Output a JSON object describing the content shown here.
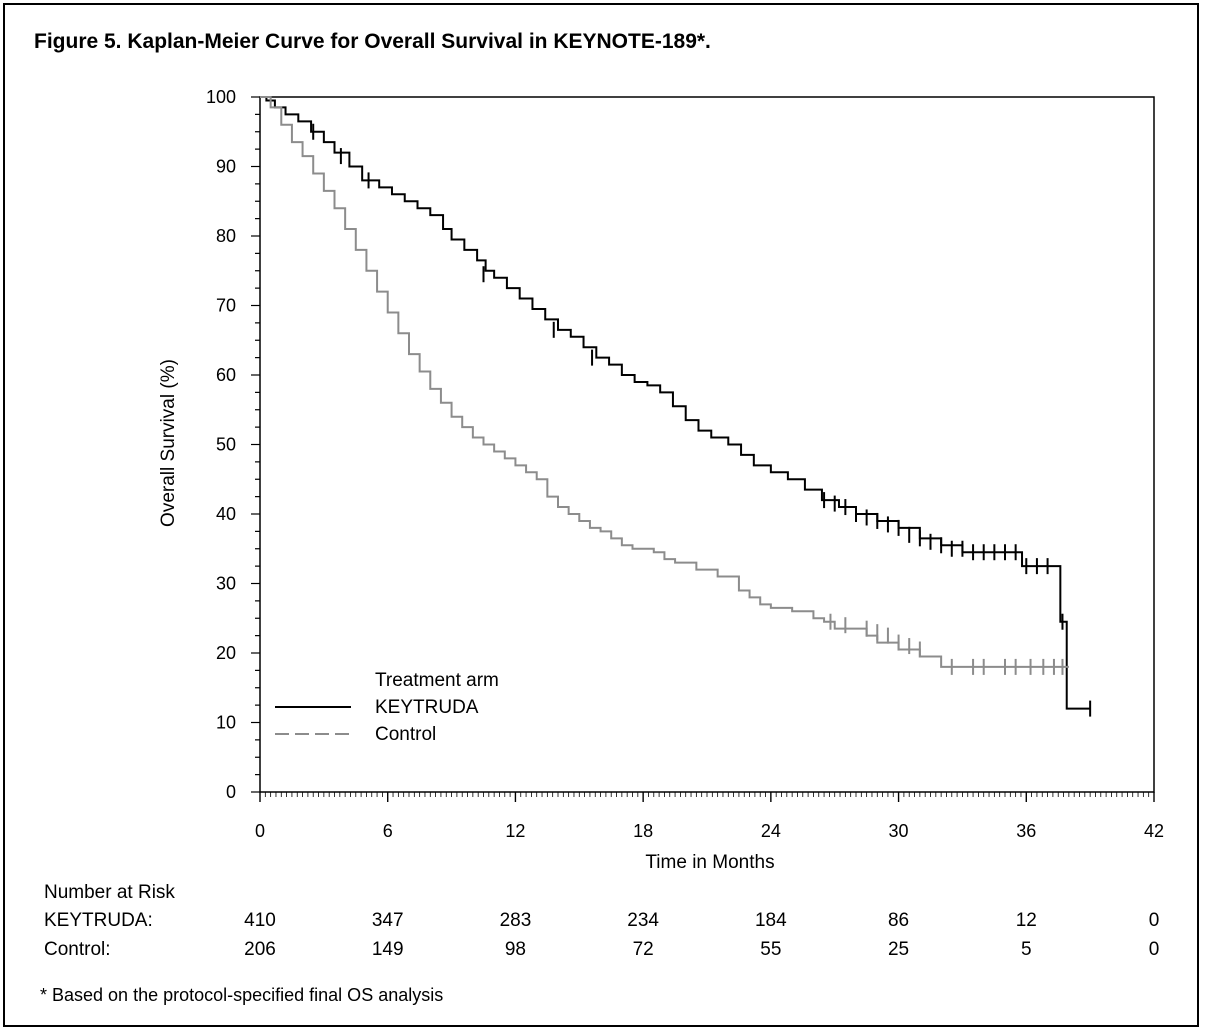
{
  "title": "Figure 5. Kaplan-Meier Curve for Overall Survival in KEYNOTE-189*.",
  "footnote": "*  Based on the protocol-specified final OS analysis",
  "chart_data": {
    "type": "line",
    "subtype": "kaplan-meier step",
    "xlabel": "Time in Months",
    "ylabel": "Overall Survival (%)",
    "xlim": [
      0,
      42
    ],
    "ylim": [
      0,
      100
    ],
    "xticks": [
      0,
      6,
      12,
      18,
      24,
      30,
      36,
      42
    ],
    "yticks": [
      0,
      10,
      20,
      30,
      40,
      50,
      60,
      70,
      80,
      90,
      100
    ],
    "grid": false,
    "legend": {
      "title": "Treatment arm",
      "placement": "bottom-left",
      "entries": [
        "KEYTRUDA",
        "Control"
      ]
    },
    "series": [
      {
        "name": "KEYTRUDA",
        "color": "#000000",
        "dash": "solid",
        "points": [
          [
            0,
            100
          ],
          [
            0.3,
            99.5
          ],
          [
            0.7,
            98.5
          ],
          [
            1.2,
            97.5
          ],
          [
            1.8,
            96.5
          ],
          [
            2.4,
            95
          ],
          [
            3,
            93.5
          ],
          [
            3.5,
            92
          ],
          [
            4.2,
            90
          ],
          [
            4.8,
            88
          ],
          [
            5.6,
            87
          ],
          [
            6.2,
            86
          ],
          [
            6.8,
            85
          ],
          [
            7.4,
            84
          ],
          [
            8,
            83
          ],
          [
            8.6,
            81
          ],
          [
            9,
            79.5
          ],
          [
            9.6,
            78
          ],
          [
            10.2,
            76.5
          ],
          [
            10.6,
            75
          ],
          [
            11,
            74
          ],
          [
            11.6,
            72.5
          ],
          [
            12.2,
            71
          ],
          [
            12.8,
            69.5
          ],
          [
            13.4,
            68
          ],
          [
            14,
            66.5
          ],
          [
            14.6,
            65.5
          ],
          [
            15.2,
            64
          ],
          [
            15.8,
            62.5
          ],
          [
            16.4,
            61.5
          ],
          [
            17,
            60
          ],
          [
            17.6,
            59
          ],
          [
            18.2,
            58.5
          ],
          [
            18.8,
            57.5
          ],
          [
            19.4,
            55.5
          ],
          [
            20,
            53.5
          ],
          [
            20.6,
            52
          ],
          [
            21.2,
            51
          ],
          [
            22,
            50
          ],
          [
            22.6,
            48.5
          ],
          [
            23.2,
            47
          ],
          [
            24,
            46
          ],
          [
            24.8,
            45
          ],
          [
            25.6,
            43.5
          ],
          [
            26.4,
            42
          ],
          [
            27.2,
            41
          ],
          [
            28,
            40
          ],
          [
            29,
            39
          ],
          [
            30,
            38
          ],
          [
            31,
            36.5
          ],
          [
            32,
            35.5
          ],
          [
            33,
            34.5
          ],
          [
            34,
            34.5
          ],
          [
            35,
            34.5
          ],
          [
            35.8,
            32.5
          ],
          [
            37.4,
            32.5
          ],
          [
            37.6,
            24.5
          ],
          [
            37.9,
            24
          ],
          [
            37.9,
            12
          ],
          [
            39,
            12
          ]
        ],
        "censored": [
          [
            2.5,
            95
          ],
          [
            3.8,
            91.5
          ],
          [
            5.1,
            88
          ],
          [
            10.5,
            74.5
          ],
          [
            13.8,
            66.5
          ],
          [
            15.6,
            62.5
          ],
          [
            26.5,
            42
          ],
          [
            27,
            41.5
          ],
          [
            27.5,
            41
          ],
          [
            28,
            40
          ],
          [
            28.5,
            39.5
          ],
          [
            29,
            39
          ],
          [
            29.5,
            38.5
          ],
          [
            30,
            38
          ],
          [
            30.5,
            37
          ],
          [
            31,
            36.5
          ],
          [
            31.5,
            36
          ],
          [
            32,
            35.5
          ],
          [
            32.5,
            35
          ],
          [
            33,
            35
          ],
          [
            33.5,
            34.5
          ],
          [
            34,
            34.5
          ],
          [
            34.5,
            34.5
          ],
          [
            35,
            34.5
          ],
          [
            35.5,
            34.5
          ],
          [
            36,
            32.5
          ],
          [
            36.5,
            32.5
          ],
          [
            37,
            32.5
          ],
          [
            37.7,
            24.5
          ],
          [
            39,
            12
          ]
        ]
      },
      {
        "name": "Control",
        "color": "#8c8c8c",
        "dash": "dashed",
        "points": [
          [
            0,
            100
          ],
          [
            0.5,
            98.5
          ],
          [
            1,
            96
          ],
          [
            1.5,
            93.5
          ],
          [
            2,
            91.5
          ],
          [
            2.5,
            89
          ],
          [
            3,
            86.5
          ],
          [
            3.5,
            84
          ],
          [
            4,
            81
          ],
          [
            4.5,
            78
          ],
          [
            5,
            75
          ],
          [
            5.5,
            72
          ],
          [
            6,
            69
          ],
          [
            6.5,
            66
          ],
          [
            7,
            63
          ],
          [
            7.5,
            60.5
          ],
          [
            8,
            58
          ],
          [
            8.5,
            56
          ],
          [
            9,
            54
          ],
          [
            9.5,
            52.5
          ],
          [
            10,
            51
          ],
          [
            10.5,
            50
          ],
          [
            11,
            49
          ],
          [
            11.5,
            48
          ],
          [
            12,
            47
          ],
          [
            12.5,
            46
          ],
          [
            13,
            45
          ],
          [
            13.5,
            42.5
          ],
          [
            14,
            41
          ],
          [
            14.5,
            40
          ],
          [
            15,
            39
          ],
          [
            15.5,
            38
          ],
          [
            16,
            37.5
          ],
          [
            16.5,
            36.5
          ],
          [
            17,
            35.5
          ],
          [
            17.5,
            35
          ],
          [
            18,
            35
          ],
          [
            18.5,
            34.5
          ],
          [
            19,
            33.5
          ],
          [
            19.5,
            33
          ],
          [
            20.5,
            32
          ],
          [
            21.5,
            31
          ],
          [
            22.5,
            29
          ],
          [
            23,
            28
          ],
          [
            23.5,
            27
          ],
          [
            24,
            26.5
          ],
          [
            25,
            26
          ],
          [
            26,
            25
          ],
          [
            26.5,
            24.5
          ],
          [
            27,
            23.5
          ],
          [
            28,
            23.5
          ],
          [
            28.5,
            22.5
          ],
          [
            29,
            21.5
          ],
          [
            30,
            20.5
          ],
          [
            31,
            19.5
          ],
          [
            32,
            18
          ],
          [
            38,
            18
          ]
        ],
        "censored": [
          [
            26.8,
            24.5
          ],
          [
            27.5,
            24
          ],
          [
            28.5,
            23.5
          ],
          [
            29,
            23
          ],
          [
            29.5,
            22.5
          ],
          [
            30,
            21.5
          ],
          [
            30.5,
            21
          ],
          [
            31,
            20.5
          ],
          [
            32.5,
            18
          ],
          [
            33.5,
            18
          ],
          [
            34,
            18
          ],
          [
            35,
            18
          ],
          [
            35.5,
            18
          ],
          [
            36.2,
            18
          ],
          [
            36.8,
            18
          ],
          [
            37.3,
            18
          ],
          [
            37.7,
            18
          ]
        ]
      }
    ],
    "number_at_risk": {
      "header": "Number at Risk",
      "times": [
        0,
        6,
        12,
        18,
        24,
        30,
        36,
        42
      ],
      "rows": [
        {
          "label": "KEYTRUDA:",
          "values": [
            "410",
            "347",
            "283",
            "234",
            "184",
            "86",
            "12",
            "0"
          ]
        },
        {
          "label": "Control:",
          "values": [
            "206",
            "149",
            "98",
            "72",
            "55",
            "25",
            "5",
            "0"
          ]
        }
      ]
    }
  }
}
